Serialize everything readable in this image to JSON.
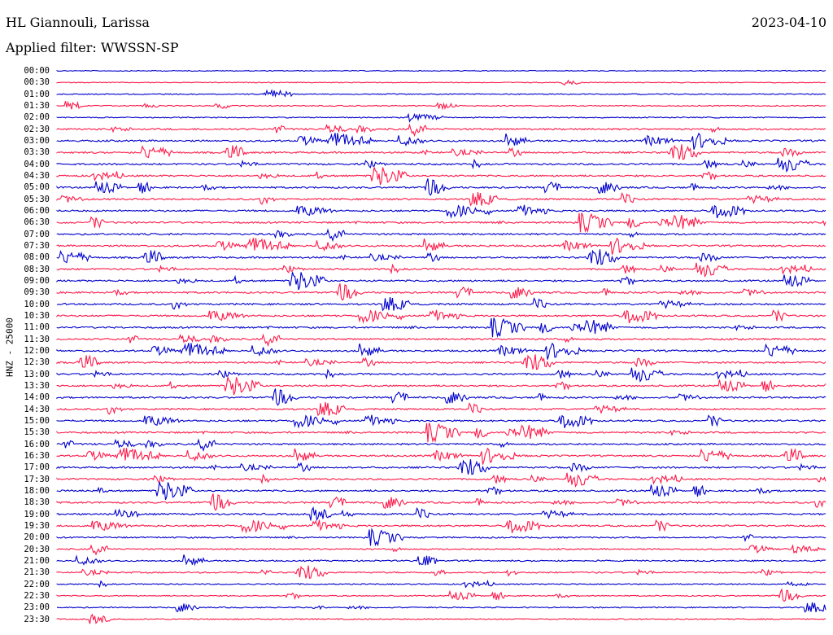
{
  "header": {
    "station": "HL Giannouli, Larissa",
    "date": "2023-04-10",
    "filter": "Applied filter: WWSSN-SP"
  },
  "axis": {
    "ylabel": "HNZ - 25000"
  },
  "colors": {
    "trace_a": "#0000cc",
    "trace_b": "#ff1a4a",
    "text": "#000000"
  },
  "times": [
    "00:00",
    "00:30",
    "01:00",
    "01:30",
    "02:00",
    "02:30",
    "03:00",
    "03:30",
    "04:00",
    "04:30",
    "05:00",
    "05:30",
    "06:00",
    "06:30",
    "07:00",
    "07:30",
    "08:00",
    "08:30",
    "09:00",
    "09:30",
    "10:00",
    "10:30",
    "11:00",
    "11:30",
    "12:00",
    "12:30",
    "13:00",
    "13:30",
    "14:00",
    "14:30",
    "15:00",
    "15:30",
    "16:00",
    "16:30",
    "17:00",
    "17:30",
    "18:00",
    "18:30",
    "19:00",
    "19:30",
    "20:00",
    "20:30",
    "21:00",
    "21:30",
    "22:00",
    "22:30",
    "23:00",
    "23:30"
  ]
}
